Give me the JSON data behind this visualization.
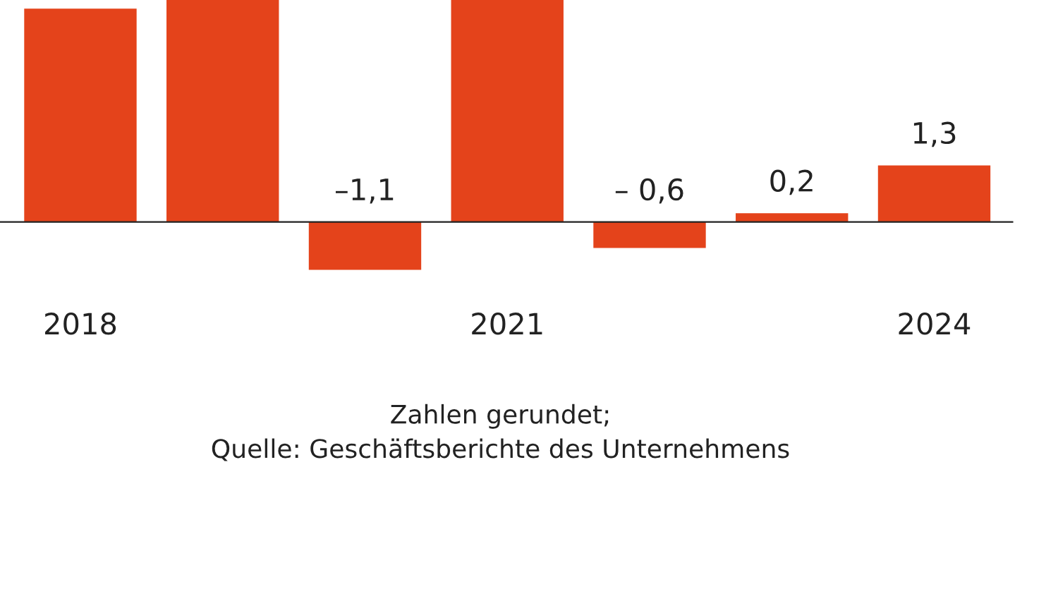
{
  "chart_data": {
    "type": "bar",
    "categories": [
      "2018",
      null,
      null,
      "2021",
      null,
      null,
      "2024"
    ],
    "values": [
      4.9,
      5.1,
      -1.1,
      5.1,
      -0.6,
      0.2,
      1.3
    ],
    "value_labels": [
      null,
      null,
      "–1,1",
      null,
      "– 0,6",
      "0,2",
      "1,3"
    ],
    "color": "#e4431b",
    "ylim": [
      -8.55,
      5.1
    ],
    "grid": false,
    "legend": false,
    "annotations": [
      "Zahlen gerundet;\nQuelle: Geschäftsberichte des Unternehmens"
    ]
  }
}
